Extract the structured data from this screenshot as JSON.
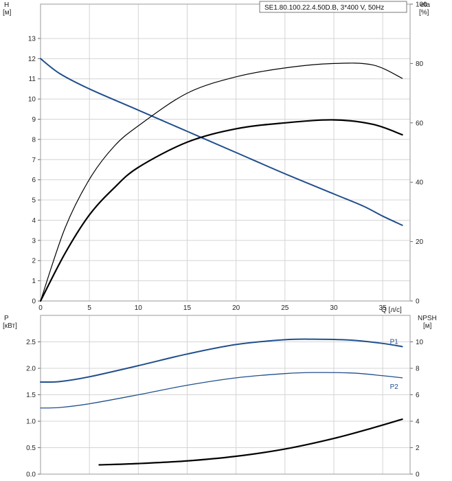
{
  "chart_data": [
    {
      "type": "line",
      "title": "SE1.80.100.22.4.50D.B, 3*400 V, 50Hz",
      "xlabel": "Q [л/с]",
      "ylabel_left": "H\n[м]",
      "ylabel_right": "eta\n[%]",
      "xlim": [
        0,
        37.8
      ],
      "ylim_left": [
        0,
        14.7
      ],
      "ylim_right": [
        0,
        100
      ],
      "xticks": [
        "0",
        "5",
        "10",
        "15",
        "20",
        "25",
        "30",
        "35"
      ],
      "yticks_left": [
        "0",
        "1",
        "2",
        "3",
        "4",
        "5",
        "6",
        "7",
        "8",
        "9",
        "10",
        "11",
        "12",
        "13"
      ],
      "yticks_right": [
        "0",
        "20",
        "40",
        "60",
        "80",
        "100"
      ],
      "grid": true,
      "series": [
        {
          "axis": "left",
          "color": "#1f4e8c",
          "x": [
            0,
            2,
            5,
            10,
            15,
            20,
            25,
            30,
            33,
            35,
            37
          ],
          "values": [
            12.0,
            11.25,
            10.5,
            9.45,
            8.4,
            7.35,
            6.3,
            5.3,
            4.7,
            4.2,
            3.75
          ]
        },
        {
          "axis": "right",
          "color": "#000000",
          "width": 1.2,
          "x": [
            0,
            2.5,
            5,
            7.5,
            10,
            15,
            20,
            25,
            30,
            34,
            37
          ],
          "values": [
            0,
            24.5,
            41,
            52,
            59,
            70,
            75.5,
            78.5,
            80,
            79.5,
            75
          ]
        },
        {
          "axis": "right",
          "color": "#000000",
          "width": 2.2,
          "x": [
            0,
            2.5,
            5,
            7.5,
            10,
            15,
            20,
            25,
            30,
            34,
            37
          ],
          "values": [
            0,
            16,
            29,
            38,
            45,
            53.5,
            58,
            60,
            61,
            59.5,
            56
          ]
        }
      ]
    },
    {
      "type": "line",
      "xlabel": "",
      "ylabel_left": "P\n[кВт]",
      "ylabel_right": "NPSH\n[м]",
      "xlim": [
        0,
        37.8
      ],
      "ylim_left": [
        0,
        3.0
      ],
      "ylim_right": [
        0,
        12
      ],
      "yticks_left": [
        "0.0",
        "0.5",
        "1.0",
        "1.5",
        "2.0",
        "2.5"
      ],
      "yticks_right": [
        "0",
        "2",
        "4",
        "6",
        "8",
        "10"
      ],
      "grid": true,
      "series": [
        {
          "name": "P1",
          "axis": "left",
          "color": "#1f4e8c",
          "width": 2,
          "x": [
            0,
            2,
            5,
            10,
            15,
            20,
            25,
            28,
            32,
            35,
            37
          ],
          "values": [
            1.74,
            1.75,
            1.84,
            2.05,
            2.27,
            2.45,
            2.54,
            2.55,
            2.53,
            2.47,
            2.41
          ]
        },
        {
          "name": "P2",
          "axis": "left",
          "color": "#1f4e8c",
          "width": 1.3,
          "x": [
            0,
            2,
            5,
            10,
            15,
            20,
            25,
            28,
            32,
            35,
            37
          ],
          "values": [
            1.25,
            1.26,
            1.33,
            1.5,
            1.68,
            1.82,
            1.9,
            1.92,
            1.91,
            1.86,
            1.82
          ]
        },
        {
          "name": "",
          "axis": "right",
          "color": "#000000",
          "width": 2.2,
          "x": [
            6,
            10,
            15,
            20,
            25,
            30,
            34,
            37
          ],
          "values": [
            0.7,
            0.8,
            1.0,
            1.35,
            1.9,
            2.7,
            3.5,
            4.15
          ]
        }
      ]
    }
  ]
}
